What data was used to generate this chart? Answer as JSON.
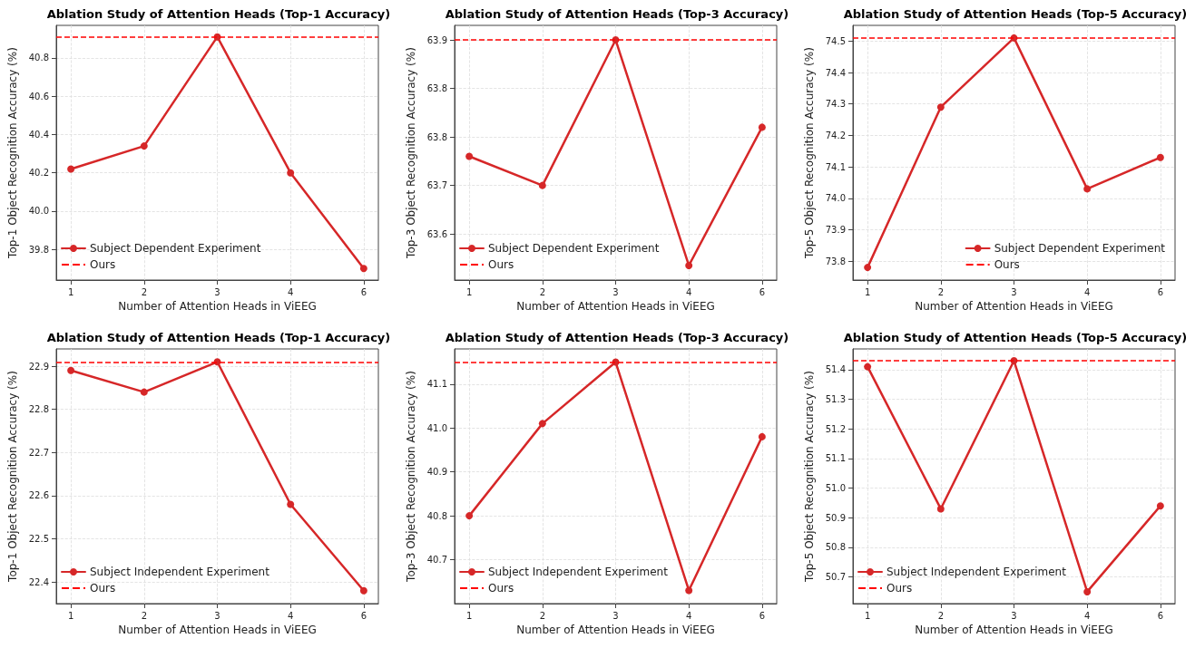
{
  "chart_data": [
    {
      "type": "line",
      "title": "Ablation Study of Attention Heads (Top-1 Accuracy)",
      "xlabel": "Number of Attention Heads in ViEEG",
      "ylabel": "Top-1 Object Recognition Accuracy (%)",
      "categories": [
        "1",
        "2",
        "3",
        "4",
        "6"
      ],
      "series": [
        {
          "name": "Subject Dependent Experiment",
          "color": "#d62728",
          "values": [
            40.22,
            40.34,
            40.91,
            40.2,
            39.7
          ]
        }
      ],
      "ref_lines": [
        {
          "axis": "y",
          "value": 40.91,
          "label": "Ours",
          "color": "#ff0000",
          "line_style": "dashed"
        }
      ],
      "ylim": [
        39.64,
        40.97
      ],
      "yticks": [
        {
          "value": 39.8,
          "label": "39.8"
        },
        {
          "value": 40.0,
          "label": "40.0"
        },
        {
          "value": 40.2,
          "label": "40.2"
        },
        {
          "value": 40.4,
          "label": "40.4"
        },
        {
          "value": 40.6,
          "label": "40.6"
        },
        {
          "value": 40.8,
          "label": "40.8"
        }
      ],
      "grid": true,
      "legend": "bottom left",
      "marker": "circle",
      "line_style": "solid"
    },
    {
      "type": "line",
      "title": "Ablation Study of Attention Heads (Top-3 Accuracy)",
      "xlabel": "Number of Attention Heads in ViEEG",
      "ylabel": "Top-3 Object Recognition Accuracy (%)",
      "categories": [
        "1",
        "2",
        "3",
        "4",
        "6"
      ],
      "series": [
        {
          "name": "Subject Dependent Experiment",
          "color": "#d62728",
          "values": [
            63.74,
            63.7,
            63.9,
            63.59,
            63.78
          ]
        }
      ],
      "ref_lines": [
        {
          "axis": "y",
          "value": 63.9,
          "label": "Ours",
          "color": "#ff0000",
          "line_style": "dashed"
        }
      ],
      "ylim": [
        63.57,
        63.92
      ],
      "yticks": [
        {
          "value": 63.6333,
          "label": "63.6"
        },
        {
          "value": 63.7,
          "label": "63.7"
        },
        {
          "value": 63.7667,
          "label": "63.8"
        },
        {
          "value": 63.8333,
          "label": "63.8"
        },
        {
          "value": 63.9,
          "label": "63.9"
        }
      ],
      "grid": true,
      "legend": "bottom left",
      "marker": "circle",
      "line_style": "solid"
    },
    {
      "type": "line",
      "title": "Ablation Study of Attention Heads (Top-5 Accuracy)",
      "xlabel": "Number of Attention Heads in ViEEG",
      "ylabel": "Top-5 Object Recognition Accuracy (%)",
      "categories": [
        "1",
        "2",
        "3",
        "4",
        "6"
      ],
      "series": [
        {
          "name": "Subject Dependent Experiment",
          "color": "#d62728",
          "values": [
            73.78,
            74.29,
            74.51,
            74.03,
            74.13
          ]
        }
      ],
      "ref_lines": [
        {
          "axis": "y",
          "value": 74.51,
          "label": "Ours",
          "color": "#ff0000",
          "line_style": "dashed"
        }
      ],
      "ylim": [
        73.74,
        74.55
      ],
      "yticks": [
        73.8,
        73.9,
        {
          "value": 74.0,
          "label": "74.0"
        },
        74.1,
        74.2,
        74.3,
        74.4,
        74.5
      ],
      "grid": true,
      "legend": "bottom right",
      "marker": "circle",
      "line_style": "solid"
    },
    {
      "type": "line",
      "title": "Ablation Study of Attention Heads (Top-1 Accuracy)",
      "xlabel": "Number of Attention Heads in ViEEG",
      "ylabel": "Top-1 Object Recognition Accuracy (%)",
      "categories": [
        "1",
        "2",
        "3",
        "4",
        "6"
      ],
      "series": [
        {
          "name": "Subject Independent Experiment",
          "color": "#d62728",
          "values": [
            22.89,
            22.84,
            22.91,
            22.58,
            22.38
          ]
        }
      ],
      "ref_lines": [
        {
          "axis": "y",
          "value": 22.91,
          "label": "Ours",
          "color": "#ff0000",
          "line_style": "dashed"
        }
      ],
      "ylim": [
        22.35,
        22.94
      ],
      "yticks": [
        22.4,
        22.5,
        22.6,
        22.7,
        22.8,
        22.9
      ],
      "grid": true,
      "legend": "bottom left",
      "marker": "circle",
      "line_style": "solid"
    },
    {
      "type": "line",
      "title": "Ablation Study of Attention Heads (Top-3 Accuracy)",
      "xlabel": "Number of Attention Heads in ViEEG",
      "ylabel": "Top-3 Object Recognition Accuracy (%)",
      "categories": [
        "1",
        "2",
        "3",
        "4",
        "6"
      ],
      "series": [
        {
          "name": "Subject Independent Experiment",
          "color": "#d62728",
          "values": [
            40.8,
            41.01,
            41.15,
            40.63,
            40.98
          ]
        }
      ],
      "ref_lines": [
        {
          "axis": "y",
          "value": 41.15,
          "label": "Ours",
          "color": "#ff0000",
          "line_style": "dashed"
        }
      ],
      "ylim": [
        40.6,
        41.18
      ],
      "yticks": [
        40.7,
        40.8,
        40.9,
        {
          "value": 41.0,
          "label": "41.0"
        },
        41.1
      ],
      "grid": true,
      "legend": "bottom left",
      "marker": "circle",
      "line_style": "solid"
    },
    {
      "type": "line",
      "title": "Ablation Study of Attention Heads (Top-5 Accuracy)",
      "xlabel": "Number of Attention Heads in ViEEG",
      "ylabel": "Top-5 Object Recognition Accuracy (%)",
      "categories": [
        "1",
        "2",
        "3",
        "4",
        "6"
      ],
      "series": [
        {
          "name": "Subject Independent Experiment",
          "color": "#d62728",
          "values": [
            51.41,
            50.93,
            51.43,
            50.65,
            50.94
          ]
        }
      ],
      "ref_lines": [
        {
          "axis": "y",
          "value": 51.43,
          "label": "Ours",
          "color": "#ff0000",
          "line_style": "dashed"
        }
      ],
      "ylim": [
        50.61,
        51.47
      ],
      "yticks": [
        50.7,
        50.8,
        50.9,
        {
          "value": 51.0,
          "label": "51.0"
        },
        51.1,
        51.2,
        51.3,
        51.4
      ],
      "grid": true,
      "legend": "bottom left",
      "marker": "circle",
      "line_style": "solid"
    }
  ]
}
